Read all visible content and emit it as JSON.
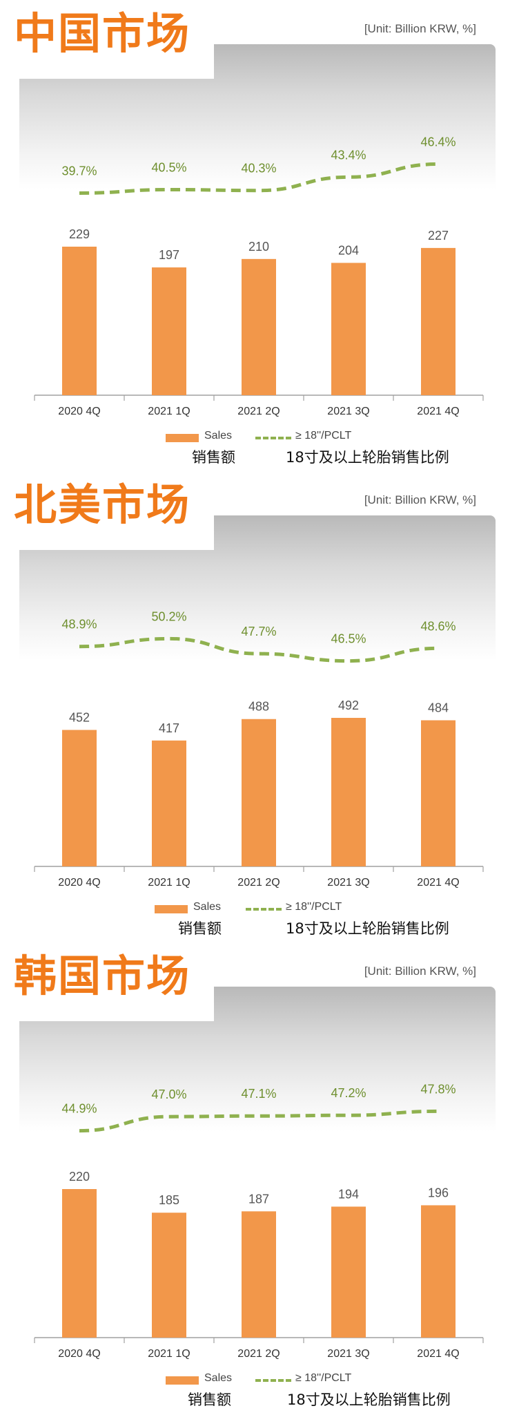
{
  "chart_data": [
    {
      "type": "bar",
      "title": "中国市场",
      "unit": "[Unit: Billion KRW, %]",
      "categories": [
        "2020 4Q",
        "2021 1Q",
        "2021 2Q",
        "2021 3Q",
        "2021 4Q"
      ],
      "series": [
        {
          "name": "Sales",
          "type": "bar",
          "values": [
            229,
            197,
            210,
            204,
            227
          ]
        },
        {
          "name": "≥ 18''/PCLT",
          "type": "line",
          "values": [
            39.7,
            40.5,
            40.3,
            43.4,
            46.4
          ],
          "labels": [
            "39.7%",
            "40.5%",
            "40.3%",
            "43.4%",
            "46.4%"
          ]
        }
      ],
      "legend": {
        "sales": "Sales",
        "sales_cn": "销售额",
        "ratio": "≥ 18''/PCLT",
        "ratio_cn": "18寸及以上轮胎销售比例"
      }
    },
    {
      "type": "bar",
      "title": "北美市场",
      "unit": "[Unit: Billion KRW, %]",
      "categories": [
        "2020 4Q",
        "2021 1Q",
        "2021 2Q",
        "2021 3Q",
        "2021 4Q"
      ],
      "series": [
        {
          "name": "Sales",
          "type": "bar",
          "values": [
            452,
            417,
            488,
            492,
            484
          ]
        },
        {
          "name": "≥ 18''/PCLT",
          "type": "line",
          "values": [
            48.9,
            50.2,
            47.7,
            46.5,
            48.6
          ],
          "labels": [
            "48.9%",
            "50.2%",
            "47.7%",
            "46.5%",
            "48.6%"
          ]
        }
      ],
      "legend": {
        "sales": "Sales",
        "sales_cn": "销售额",
        "ratio": "≥ 18''/PCLT",
        "ratio_cn": "18寸及以上轮胎销售比例"
      }
    },
    {
      "type": "bar",
      "title": "韩国市场",
      "unit": "[Unit: Billion KRW, %]",
      "categories": [
        "2020 4Q",
        "2021 1Q",
        "2021 2Q",
        "2021 3Q",
        "2021 4Q"
      ],
      "series": [
        {
          "name": "Sales",
          "type": "bar",
          "values": [
            220,
            185,
            187,
            194,
            196
          ]
        },
        {
          "name": "≥ 18''/PCLT",
          "type": "line",
          "values": [
            44.9,
            47.0,
            47.1,
            47.2,
            47.8
          ],
          "labels": [
            "44.9%",
            "47.0%",
            "47.1%",
            "47.2%",
            "47.8%"
          ]
        }
      ],
      "legend": {
        "sales": "Sales",
        "sales_cn": "销售额",
        "ratio": "≥ 18''/PCLT",
        "ratio_cn": "18寸及以上轮胎销售比例"
      }
    }
  ],
  "colors": {
    "title": "#f07a1a",
    "bar": "#f2974a",
    "line": "#8fb14f",
    "axis": "#a0a0a0"
  }
}
